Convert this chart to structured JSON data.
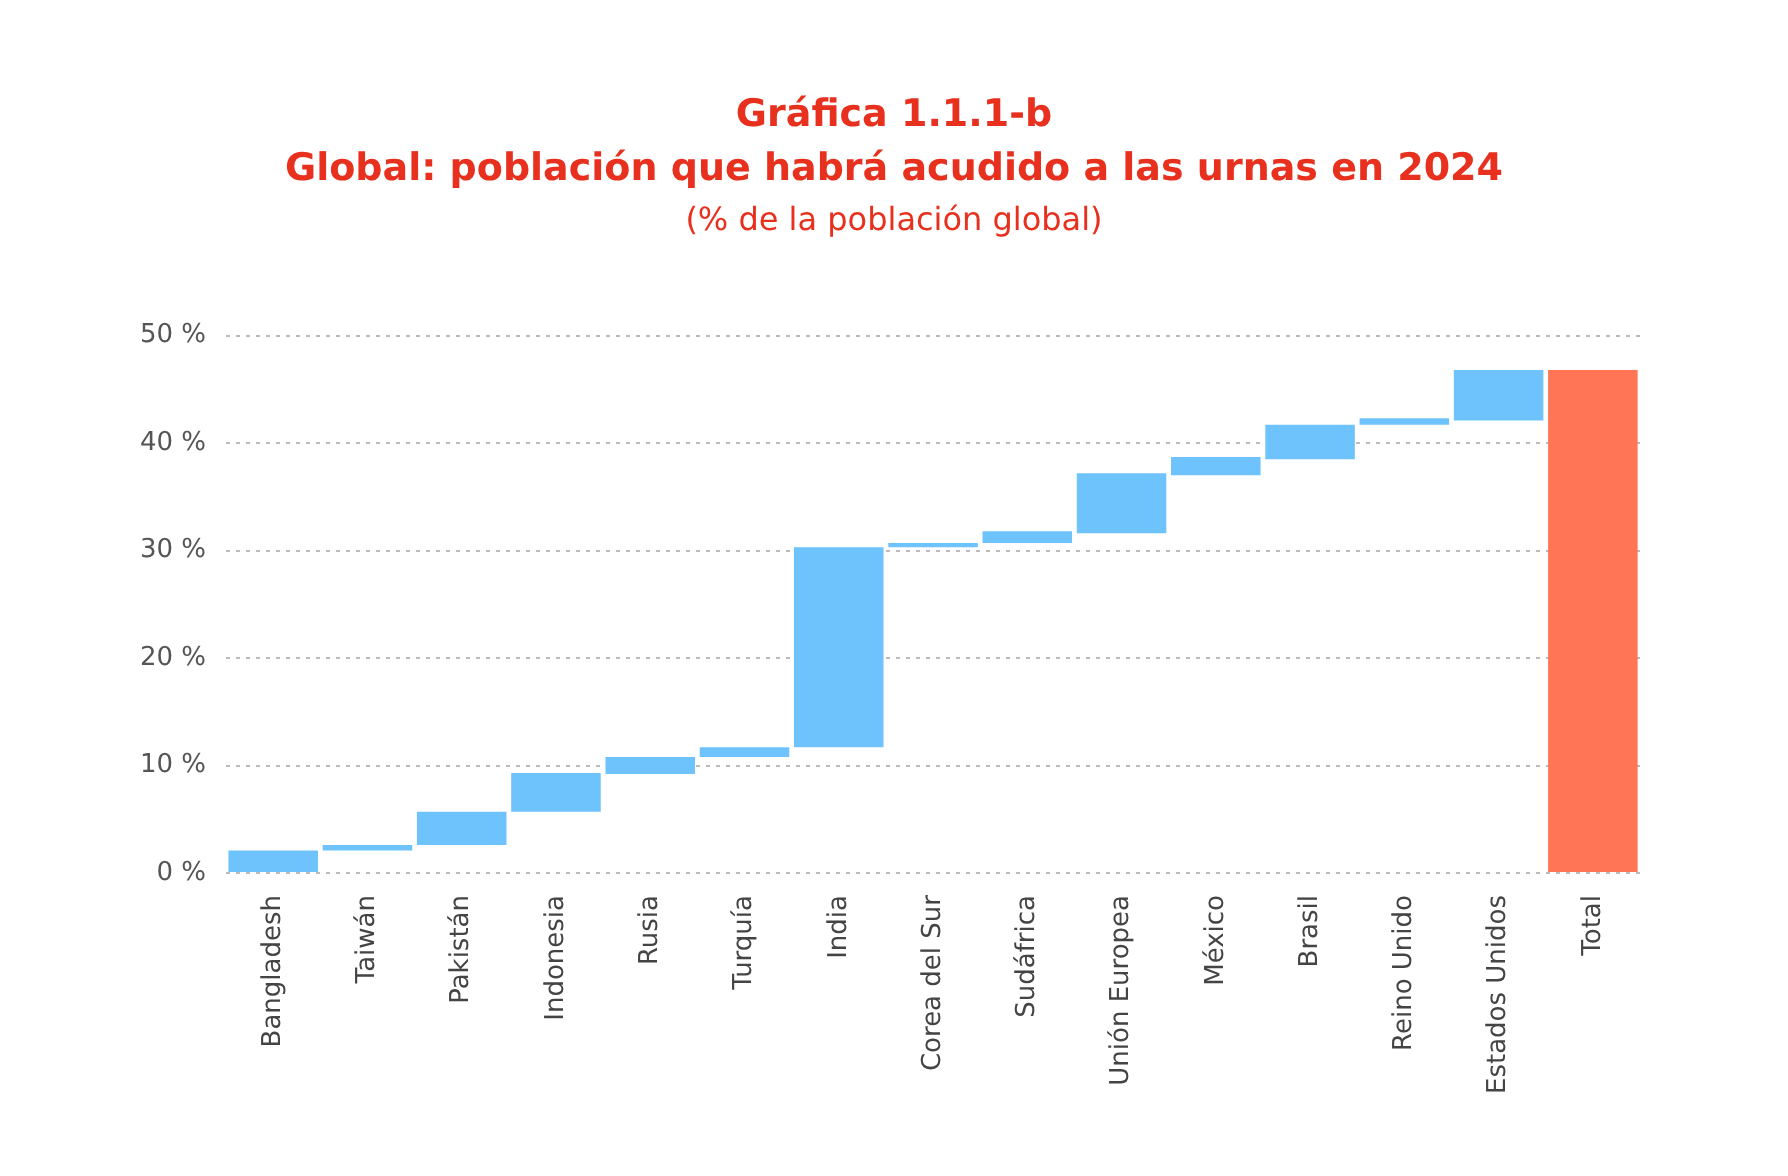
{
  "chart_data": {
    "type": "bar",
    "title": "Gráfica 1.1.1-b\nGlobal: población que habrá acudido a las urnas en 2024",
    "subtitle": "(% de la población global)",
    "categories": [
      "Bangladesh",
      "Taiwán",
      "Pakistán",
      "Indonesia",
      "Rusia",
      "Turquía",
      "India",
      "Corea del Sur",
      "Sudáfrica",
      "Unión Europea",
      "México",
      "Brasil",
      "Reino Unido",
      "Estados Unidos",
      "Total"
    ],
    "values": [
      2.1,
      0.5,
      3.1,
      3.6,
      1.6,
      0.9,
      18.6,
      0.4,
      1.1,
      5.6,
      1.7,
      3.2,
      0.6,
      4.7,
      46.8
    ],
    "base": [
      0,
      2.1,
      2.6,
      5.7,
      9.2,
      10.8,
      11.7,
      30.3,
      30.7,
      31.6,
      37.0,
      38.5,
      41.7,
      42.1,
      0
    ],
    "colors": [
      "#6ec3fc",
      "#6ec3fc",
      "#6ec3fc",
      "#6ec3fc",
      "#6ec3fc",
      "#6ec3fc",
      "#6ec3fc",
      "#6ec3fc",
      "#6ec3fc",
      "#6ec3fc",
      "#6ec3fc",
      "#6ec3fc",
      "#6ec3fc",
      "#6ec3fc",
      "#ff7555"
    ],
    "ylim": [
      0,
      50
    ],
    "yticks": [
      {
        "value": 0,
        "label": "0 %"
      },
      {
        "value": 10,
        "label": "10 %"
      },
      {
        "value": 20,
        "label": "20 %"
      },
      {
        "value": 30,
        "label": "30 %"
      },
      {
        "value": 40,
        "label": "40 %"
      },
      {
        "value": 50,
        "label": "50 %"
      }
    ],
    "grid": "y",
    "legend": false
  }
}
